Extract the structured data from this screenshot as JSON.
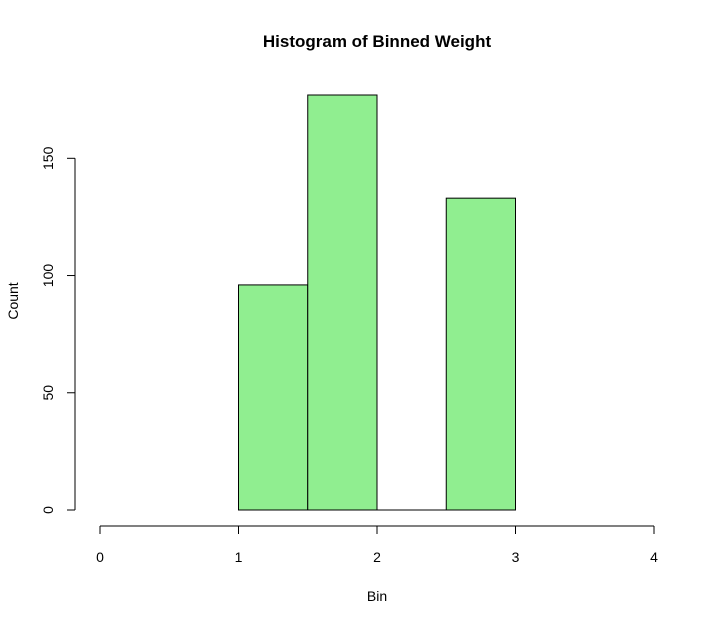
{
  "chart_data": {
    "type": "bar",
    "title": "Histogram of Binned Weight",
    "xlabel": "Bin",
    "ylabel": "Count",
    "bins": [
      {
        "from": 1.0,
        "to": 1.5,
        "count": 96
      },
      {
        "from": 1.5,
        "to": 2.0,
        "count": 177
      },
      {
        "from": 2.0,
        "to": 2.5,
        "count": 0
      },
      {
        "from": 2.5,
        "to": 3.0,
        "count": 133
      }
    ],
    "xlim": [
      0,
      4
    ],
    "ylim": [
      0,
      177
    ],
    "xticks": [
      "0",
      "1",
      "2",
      "3",
      "4"
    ],
    "yticks": [
      "0",
      "50",
      "100",
      "150"
    ],
    "bar_fill": "#90ee90",
    "bar_stroke": "#000000",
    "grid": false,
    "legend": "none"
  }
}
